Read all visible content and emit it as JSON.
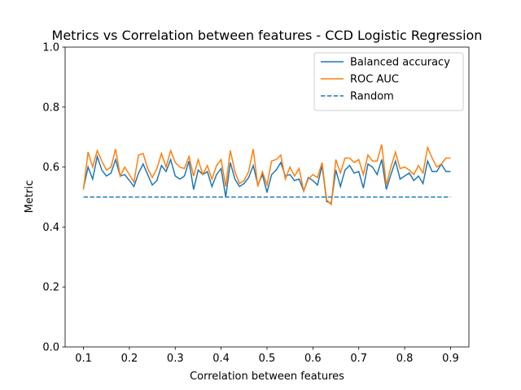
{
  "chart_data": {
    "type": "line",
    "title": "Metrics vs Correlation between features - CCD Logistic Regression",
    "xlabel": "Correlation between features",
    "ylabel": "Metric",
    "x": [
      0.1,
      0.11,
      0.12,
      0.13,
      0.14,
      0.15,
      0.16,
      0.17,
      0.18,
      0.19,
      0.2,
      0.21,
      0.22,
      0.23,
      0.24,
      0.25,
      0.26,
      0.27,
      0.28,
      0.29,
      0.3,
      0.31,
      0.32,
      0.33,
      0.34,
      0.35,
      0.36,
      0.37,
      0.38,
      0.39,
      0.4,
      0.41,
      0.42,
      0.43,
      0.44,
      0.45,
      0.46,
      0.47,
      0.48,
      0.49,
      0.5,
      0.51,
      0.52,
      0.53,
      0.54,
      0.55,
      0.56,
      0.57,
      0.58,
      0.59,
      0.6,
      0.61,
      0.62,
      0.63,
      0.64,
      0.65,
      0.66,
      0.67,
      0.68,
      0.69,
      0.7,
      0.71,
      0.72,
      0.73,
      0.74,
      0.75,
      0.76,
      0.77,
      0.78,
      0.79,
      0.8,
      0.81,
      0.82,
      0.83,
      0.84,
      0.85,
      0.86,
      0.87,
      0.88,
      0.89,
      0.9
    ],
    "series": [
      {
        "name": "Balanced accuracy",
        "color": "#1f77b4",
        "linestyle": "solid",
        "values": [
          0.53,
          0.6,
          0.56,
          0.635,
          0.59,
          0.57,
          0.58,
          0.625,
          0.57,
          0.575,
          0.555,
          0.535,
          0.58,
          0.61,
          0.575,
          0.54,
          0.555,
          0.605,
          0.585,
          0.625,
          0.57,
          0.56,
          0.57,
          0.62,
          0.525,
          0.59,
          0.575,
          0.585,
          0.535,
          0.575,
          0.595,
          0.5,
          0.615,
          0.56,
          0.535,
          0.545,
          0.565,
          0.605,
          0.54,
          0.575,
          0.515,
          0.575,
          0.59,
          0.615,
          0.57,
          0.575,
          0.555,
          0.56,
          0.52,
          0.565,
          0.555,
          0.54,
          0.605,
          0.485,
          0.48,
          0.59,
          0.535,
          0.59,
          0.605,
          0.58,
          0.585,
          0.53,
          0.61,
          0.6,
          0.575,
          0.625,
          0.525,
          0.575,
          0.62,
          0.56,
          0.57,
          0.58,
          0.555,
          0.57,
          0.545,
          0.62,
          0.585,
          0.585,
          0.61,
          0.585,
          0.585
        ]
      },
      {
        "name": "ROC AUC",
        "color": "#ff7f0e",
        "linestyle": "solid",
        "values": [
          0.525,
          0.65,
          0.6,
          0.655,
          0.62,
          0.59,
          0.6,
          0.66,
          0.57,
          0.6,
          0.575,
          0.55,
          0.64,
          0.645,
          0.595,
          0.565,
          0.595,
          0.645,
          0.6,
          0.655,
          0.615,
          0.6,
          0.595,
          0.635,
          0.57,
          0.625,
          0.575,
          0.605,
          0.56,
          0.605,
          0.625,
          0.535,
          0.655,
          0.585,
          0.545,
          0.555,
          0.585,
          0.66,
          0.535,
          0.585,
          0.54,
          0.62,
          0.625,
          0.64,
          0.56,
          0.6,
          0.57,
          0.595,
          0.52,
          0.56,
          0.575,
          0.565,
          0.615,
          0.49,
          0.475,
          0.625,
          0.58,
          0.63,
          0.63,
          0.615,
          0.625,
          0.575,
          0.64,
          0.62,
          0.62,
          0.675,
          0.54,
          0.6,
          0.65,
          0.595,
          0.6,
          0.59,
          0.575,
          0.605,
          0.58,
          0.665,
          0.63,
          0.6,
          0.61,
          0.63,
          0.63
        ]
      },
      {
        "name": "Random",
        "color": "#1f77b4",
        "linestyle": "dashed",
        "x": [
          0.1,
          0.9
        ],
        "values": [
          0.5,
          0.5
        ]
      }
    ],
    "xlim": [
      0.06,
      0.94
    ],
    "ylim": [
      0,
      1
    ],
    "xticks": [
      0.1,
      0.2,
      0.3,
      0.4,
      0.5,
      0.6,
      0.7,
      0.8,
      0.9
    ],
    "yticks": [
      {
        "value": 0,
        "label": "0.0"
      },
      0.2,
      0.4,
      0.6,
      0.8,
      {
        "value": 1,
        "label": "1.0"
      }
    ],
    "legend": "upper right",
    "grid": false
  }
}
